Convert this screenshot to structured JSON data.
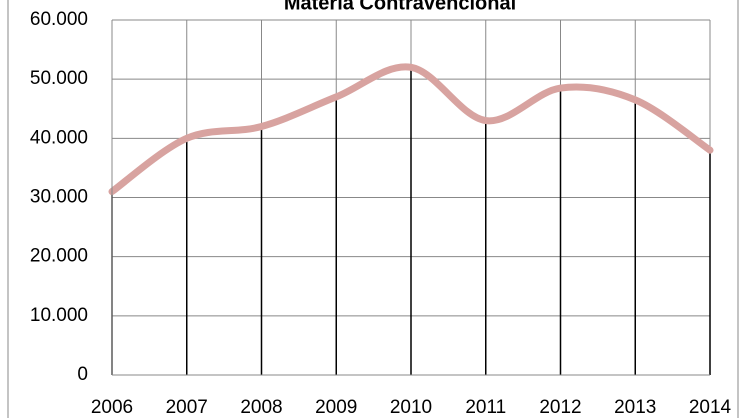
{
  "chart_data": {
    "type": "line",
    "title": "Materia Contravencional",
    "categories": [
      "2006",
      "2007",
      "2008",
      "2009",
      "2010",
      "2011",
      "2012",
      "2013",
      "2014"
    ],
    "series": [
      {
        "name": "Materia Contravencional",
        "color": "#d8a3a0",
        "values": [
          31000,
          40000,
          42000,
          47000,
          52000,
          43000,
          48500,
          46500,
          38000
        ]
      }
    ],
    "ylim": [
      0,
      60000
    ],
    "yticks": [
      0,
      {
        "value": 10000,
        "label": "10.000"
      },
      {
        "value": 20000,
        "label": "20.000"
      },
      {
        "value": 30000,
        "label": "30.000"
      },
      {
        "value": 40000,
        "label": "40.000"
      },
      {
        "value": 50000,
        "label": "50.000"
      },
      {
        "value": 60000,
        "label": "60.000"
      }
    ],
    "grid": true,
    "drop_lines": true
  }
}
